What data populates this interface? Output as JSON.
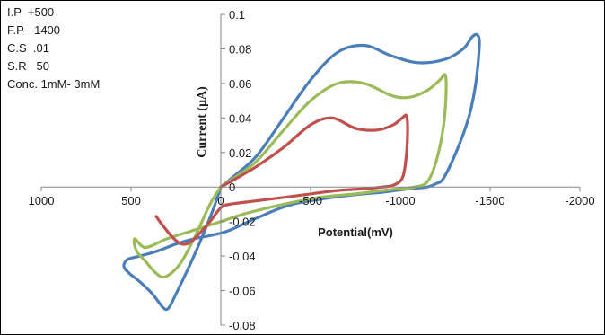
{
  "info_lines": [
    "I.P  +500",
    "F.P  -1400",
    "C.S  .01",
    "S.R   50",
    "Conc. 1mM- 3mM"
  ],
  "chart_data": {
    "type": "line",
    "title": "",
    "xlabel": "Potential(mV)",
    "ylabel": "Current (μA)",
    "xlim": [
      1000,
      -2000
    ],
    "ylim": [
      -0.08,
      0.1
    ],
    "x_ticks": [
      1000,
      500,
      0,
      -500,
      -1000,
      -1500,
      -2000
    ],
    "x_tick_labels": [
      "1000",
      "500",
      "0",
      "-500",
      "-1000",
      "-1500",
      "-2000"
    ],
    "y_ticks": [
      -0.08,
      -0.06,
      -0.04,
      -0.02,
      0,
      0.02,
      0.04,
      0.06,
      0.08,
      0.1
    ],
    "y_tick_labels": [
      "-0.08",
      "-0.06",
      "-0.04",
      "-0.02",
      "0",
      "0.02",
      "0.04",
      "0.06",
      "0.08",
      "0.1"
    ],
    "grid": false,
    "legend": "none",
    "series": [
      {
        "color": "#4a7ebb",
        "x": [
          0,
          -70,
          -200,
          -350,
          -500,
          -650,
          -800,
          -950,
          -1100,
          -1250,
          -1350,
          -1400,
          -1430,
          -1440,
          -1420,
          -1380,
          -1310,
          -1240,
          -1200,
          -1150,
          -1050,
          -900,
          -700,
          -400,
          -200,
          -50,
          50,
          150,
          250,
          350,
          450,
          520,
          540,
          510,
          450,
          380,
          320,
          290,
          250,
          150,
          50,
          0
        ],
        "y": [
          0,
          0.006,
          0.018,
          0.04,
          0.062,
          0.078,
          0.082,
          0.076,
          0.072,
          0.074,
          0.08,
          0.087,
          0.088,
          0.082,
          0.06,
          0.04,
          0.02,
          0.005,
          0.002,
          0.0,
          -0.001,
          -0.003,
          -0.005,
          -0.01,
          -0.018,
          -0.025,
          -0.028,
          -0.03,
          -0.033,
          -0.037,
          -0.04,
          -0.042,
          -0.046,
          -0.05,
          -0.055,
          -0.062,
          -0.07,
          -0.07,
          -0.062,
          -0.04,
          -0.015,
          0
        ]
      },
      {
        "color": "#9bbb59",
        "x": [
          0,
          -70,
          -200,
          -350,
          -500,
          -650,
          -800,
          -950,
          -1050,
          -1150,
          -1220,
          -1250,
          -1255,
          -1240,
          -1200,
          -1150,
          -1080,
          -1000,
          -900,
          -750,
          -550,
          -350,
          -150,
          0,
          150,
          300,
          420,
          480,
          470,
          420,
          360,
          310,
          230,
          150,
          60,
          0
        ],
        "y": [
          0,
          0.005,
          0.015,
          0.033,
          0.05,
          0.06,
          0.06,
          0.053,
          0.052,
          0.056,
          0.062,
          0.065,
          0.055,
          0.035,
          0.015,
          0.003,
          0.0,
          -0.001,
          -0.002,
          -0.004,
          -0.006,
          -0.01,
          -0.015,
          -0.02,
          -0.025,
          -0.03,
          -0.035,
          -0.03,
          -0.037,
          -0.043,
          -0.05,
          -0.052,
          -0.045,
          -0.03,
          -0.01,
          0
        ]
      },
      {
        "color": "#c0504d",
        "x": [
          0,
          -70,
          -200,
          -350,
          -500,
          -620,
          -750,
          -870,
          -960,
          -1010,
          -1035,
          -1040,
          -1030,
          -1010,
          -960,
          -900,
          -800,
          -650,
          -500,
          -350,
          -200,
          -50,
          0,
          60,
          120,
          170,
          220,
          270,
          310,
          340,
          360
        ],
        "y": [
          0,
          0.004,
          0.012,
          0.023,
          0.036,
          0.04,
          0.034,
          0.033,
          0.036,
          0.04,
          0.041,
          0.03,
          0.015,
          0.005,
          0.001,
          0.0,
          -0.001,
          -0.002,
          -0.004,
          -0.006,
          -0.008,
          -0.01,
          -0.012,
          -0.02,
          -0.027,
          -0.032,
          -0.033,
          -0.029,
          -0.024,
          -0.02,
          -0.017
        ]
      }
    ]
  }
}
